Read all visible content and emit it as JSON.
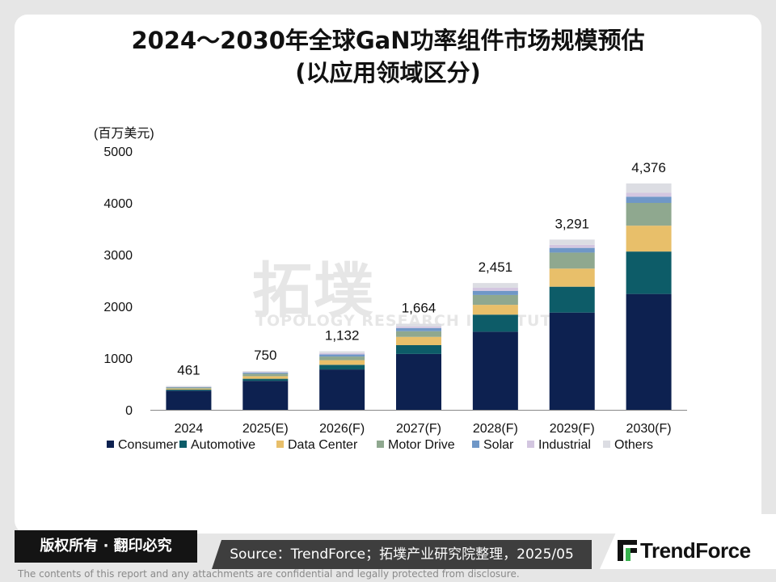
{
  "header": {
    "title_line1": "2024～2030年全球GaN功率组件市场规模预估",
    "title_line2": "(以应用领域区分)"
  },
  "chart_data": {
    "type": "bar",
    "stacked": true,
    "unit_label": "(百万美元)",
    "categories": [
      "2024",
      "2025(E)",
      "2026(F)",
      "2027(F)",
      "2028(F)",
      "2029(F)",
      "2030(F)"
    ],
    "totals": [
      461,
      750,
      1132,
      1664,
      2451,
      3291,
      4376
    ],
    "total_labels": [
      "461",
      "750",
      "1,132",
      "1,664",
      "2,451",
      "3,291",
      "4,376"
    ],
    "ylim": [
      0,
      5000
    ],
    "yticks": [
      0,
      1000,
      2000,
      3000,
      4000,
      5000
    ],
    "grid": false,
    "legend_position": "bottom",
    "series": [
      {
        "name": "Consumer",
        "color": "#0d2150",
        "values": [
          370,
          560,
          780,
          1080,
          1510,
          1880,
          2240
        ]
      },
      {
        "name": "Automotive",
        "color": "#0d5c68",
        "values": [
          20,
          40,
          90,
          170,
          330,
          500,
          820
        ]
      },
      {
        "name": "Data Center",
        "color": "#e8bf6a",
        "values": [
          20,
          50,
          90,
          160,
          190,
          350,
          500
        ]
      },
      {
        "name": "Motor Drive",
        "color": "#8fa88f",
        "values": [
          20,
          50,
          70,
          110,
          190,
          310,
          440
        ]
      },
      {
        "name": "Solar",
        "color": "#6f97c7",
        "values": [
          10,
          20,
          40,
          60,
          80,
          90,
          120
        ]
      },
      {
        "name": "Industrial",
        "color": "#d3c6e0",
        "values": [
          6,
          10,
          25,
          30,
          60,
          60,
          76
        ]
      },
      {
        "name": "Others",
        "color": "#dcdde3",
        "values": [
          15,
          20,
          37,
          54,
          91,
          101,
          180
        ]
      }
    ]
  },
  "watermark": {
    "cn": "拓墣",
    "en": "TOPOLOGY RESEARCH INSTITUTE"
  },
  "footer": {
    "rights": "版权所有 · 翻印必究",
    "source": "Source：TrendForce；拓墣产业研究院整理，2025/05",
    "logo_text": "TrendForce",
    "disclaimer": "The contents of this report and any attachments are confidential and legally protected from disclosure."
  }
}
